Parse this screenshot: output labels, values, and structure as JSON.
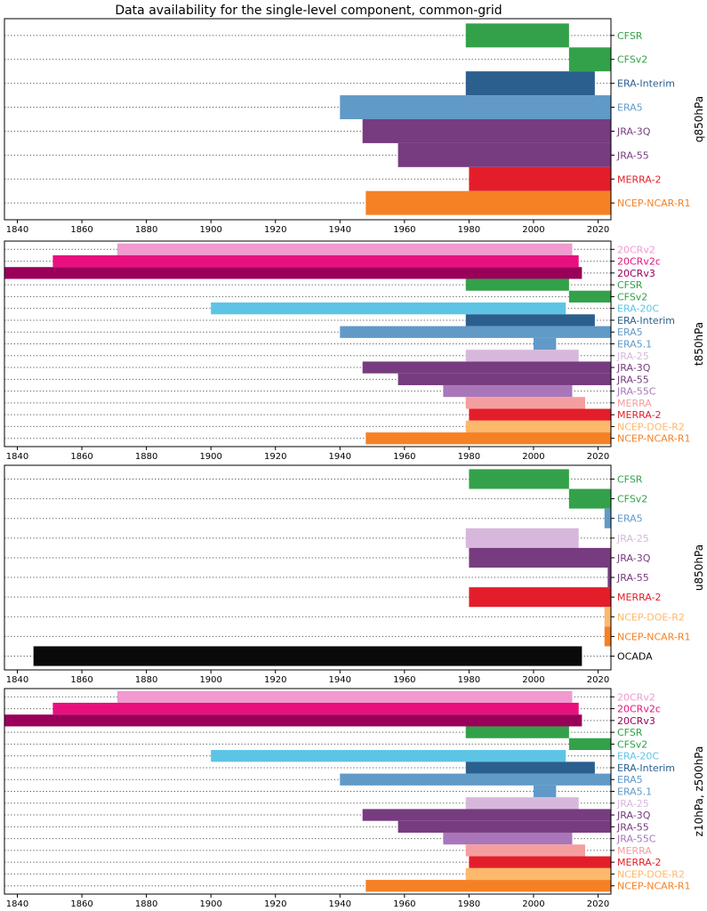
{
  "title": "Data availability for the single-level component, common-grid",
  "colors": {
    "20CRv2": "#f09ad0",
    "20CRv2c": "#e8107e",
    "20CRv3": "#9a0059",
    "CFSR": "#33a14a",
    "CFSv2": "#33a14a",
    "ERA-20C": "#5ec4e6",
    "ERA-Interim": "#2a5f8e",
    "ERA5": "#6199c7",
    "ERA5.1": "#6199c7",
    "JRA-25": "#d7b8dc",
    "JRA-3Q": "#773b7f",
    "JRA-55": "#773b7f",
    "JRA-55C": "#a977b9",
    "MERRA": "#f59ea0",
    "MERRA-2": "#e31e2a",
    "NCEP-DOE-R2": "#fcb86b",
    "NCEP-NCAR-R1": "#f58124",
    "OCADA": "#0a0a0a"
  },
  "chart_data": [
    {
      "type": "bar",
      "orientation": "horizontal-range",
      "ylabel": "q850hPa",
      "xlim": [
        1836,
        2024
      ],
      "xticks": [
        1840,
        1860,
        1880,
        1900,
        1920,
        1940,
        1960,
        1980,
        2000,
        2020
      ],
      "grid": "dotted horizontal lines at each row",
      "rows": [
        {
          "name": "CFSR",
          "start": 1979,
          "end": 2011
        },
        {
          "name": "CFSv2",
          "start": 2011,
          "end": 2024
        },
        {
          "name": "ERA-Interim",
          "start": 1979,
          "end": 2019
        },
        {
          "name": "ERA5",
          "start": 1940,
          "end": 2024
        },
        {
          "name": "JRA-3Q",
          "start": 1947,
          "end": 2024
        },
        {
          "name": "JRA-55",
          "start": 1958,
          "end": 2024
        },
        {
          "name": "MERRA-2",
          "start": 1980,
          "end": 2024
        },
        {
          "name": "NCEP-NCAR-R1",
          "start": 1948,
          "end": 2024
        }
      ]
    },
    {
      "type": "bar",
      "orientation": "horizontal-range",
      "ylabel": "t850hPa",
      "xlim": [
        1836,
        2024
      ],
      "xticks": [
        1840,
        1860,
        1880,
        1900,
        1920,
        1940,
        1960,
        1980,
        2000,
        2020
      ],
      "grid": "dotted horizontal lines at each row",
      "rows": [
        {
          "name": "20CRv2",
          "start": 1871,
          "end": 2012
        },
        {
          "name": "20CRv2c",
          "start": 1851,
          "end": 2014
        },
        {
          "name": "20CRv3",
          "start": 1836,
          "end": 2015
        },
        {
          "name": "CFSR",
          "start": 1979,
          "end": 2011
        },
        {
          "name": "CFSv2",
          "start": 2011,
          "end": 2024
        },
        {
          "name": "ERA-20C",
          "start": 1900,
          "end": 2010
        },
        {
          "name": "ERA-Interim",
          "start": 1979,
          "end": 2019
        },
        {
          "name": "ERA5",
          "start": 1940,
          "end": 2024
        },
        {
          "name": "ERA5.1",
          "start": 2000,
          "end": 2007
        },
        {
          "name": "JRA-25",
          "start": 1979,
          "end": 2014
        },
        {
          "name": "JRA-3Q",
          "start": 1947,
          "end": 2024
        },
        {
          "name": "JRA-55",
          "start": 1958,
          "end": 2024
        },
        {
          "name": "JRA-55C",
          "start": 1972,
          "end": 2012
        },
        {
          "name": "MERRA",
          "start": 1979,
          "end": 2016
        },
        {
          "name": "MERRA-2",
          "start": 1980,
          "end": 2024
        },
        {
          "name": "NCEP-DOE-R2",
          "start": 1979,
          "end": 2024
        },
        {
          "name": "NCEP-NCAR-R1",
          "start": 1948,
          "end": 2024
        }
      ]
    },
    {
      "type": "bar",
      "orientation": "horizontal-range",
      "ylabel": "u850hPa",
      "xlim": [
        1836,
        2024
      ],
      "xticks": [
        1840,
        1860,
        1880,
        1900,
        1920,
        1940,
        1960,
        1980,
        2000,
        2020
      ],
      "grid": "dotted horizontal lines at each row",
      "rows": [
        {
          "name": "CFSR",
          "start": 1980,
          "end": 2011
        },
        {
          "name": "CFSv2",
          "start": 2011,
          "end": 2024
        },
        {
          "name": "ERA5",
          "start": 2022,
          "end": 2024
        },
        {
          "name": "JRA-25",
          "start": 1979,
          "end": 2014
        },
        {
          "name": "JRA-3Q",
          "start": 1980,
          "end": 2024
        },
        {
          "name": "JRA-55",
          "start": 2023,
          "end": 2024
        },
        {
          "name": "MERRA-2",
          "start": 1980,
          "end": 2024
        },
        {
          "name": "NCEP-DOE-R2",
          "start": 2022,
          "end": 2024
        },
        {
          "name": "NCEP-NCAR-R1",
          "start": 2022,
          "end": 2024
        },
        {
          "name": "OCADA",
          "start": 1845,
          "end": 2015
        }
      ]
    },
    {
      "type": "bar",
      "orientation": "horizontal-range",
      "ylabel": "z10hPa, z500hPa",
      "xlim": [
        1836,
        2024
      ],
      "xticks": [
        1840,
        1860,
        1880,
        1900,
        1920,
        1940,
        1960,
        1980,
        2000,
        2020
      ],
      "grid": "dotted horizontal lines at each row",
      "rows": [
        {
          "name": "20CRv2",
          "start": 1871,
          "end": 2012
        },
        {
          "name": "20CRv2c",
          "start": 1851,
          "end": 2014
        },
        {
          "name": "20CRv3",
          "start": 1836,
          "end": 2015
        },
        {
          "name": "CFSR",
          "start": 1979,
          "end": 2011
        },
        {
          "name": "CFSv2",
          "start": 2011,
          "end": 2024
        },
        {
          "name": "ERA-20C",
          "start": 1900,
          "end": 2010
        },
        {
          "name": "ERA-Interim",
          "start": 1979,
          "end": 2019
        },
        {
          "name": "ERA5",
          "start": 1940,
          "end": 2024
        },
        {
          "name": "ERA5.1",
          "start": 2000,
          "end": 2007
        },
        {
          "name": "JRA-25",
          "start": 1979,
          "end": 2014
        },
        {
          "name": "JRA-3Q",
          "start": 1947,
          "end": 2024
        },
        {
          "name": "JRA-55",
          "start": 1958,
          "end": 2024
        },
        {
          "name": "JRA-55C",
          "start": 1972,
          "end": 2012
        },
        {
          "name": "MERRA",
          "start": 1979,
          "end": 2016
        },
        {
          "name": "MERRA-2",
          "start": 1980,
          "end": 2024
        },
        {
          "name": "NCEP-DOE-R2",
          "start": 1979,
          "end": 2024
        },
        {
          "name": "NCEP-NCAR-R1",
          "start": 1948,
          "end": 2024
        }
      ]
    }
  ]
}
